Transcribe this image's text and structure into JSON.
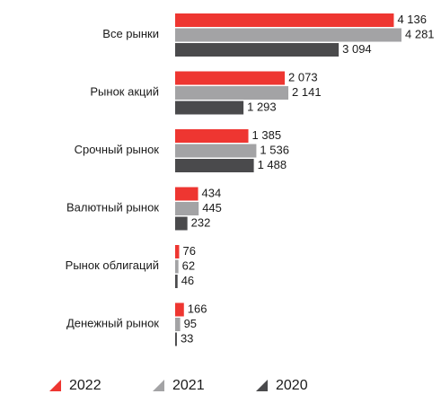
{
  "chart_data": {
    "type": "bar",
    "orientation": "horizontal",
    "categories": [
      "Все рынки",
      "Рынок акций",
      "Срочный рынок",
      "Валютный рынок",
      "Рынок облигаций",
      "Денежный рынок"
    ],
    "series": [
      {
        "name": "2022",
        "color": "#ee3631",
        "values": [
          4136,
          2073,
          1385,
          434,
          76,
          166
        ],
        "value_labels": [
          "4 136",
          "2 073",
          "1 385",
          "434",
          "76",
          "166"
        ]
      },
      {
        "name": "2021",
        "color": "#a3a3a5",
        "values": [
          4281,
          2141,
          1536,
          445,
          62,
          95
        ],
        "value_labels": [
          "4 281",
          "2 141",
          "1 536",
          "445",
          "62",
          "95"
        ]
      },
      {
        "name": "2020",
        "color": "#4a4a4c",
        "values": [
          3094,
          1293,
          1488,
          232,
          46,
          33
        ],
        "value_labels": [
          "3 094",
          "1 293",
          "1 488",
          "232",
          "46",
          "33"
        ]
      }
    ]
  }
}
